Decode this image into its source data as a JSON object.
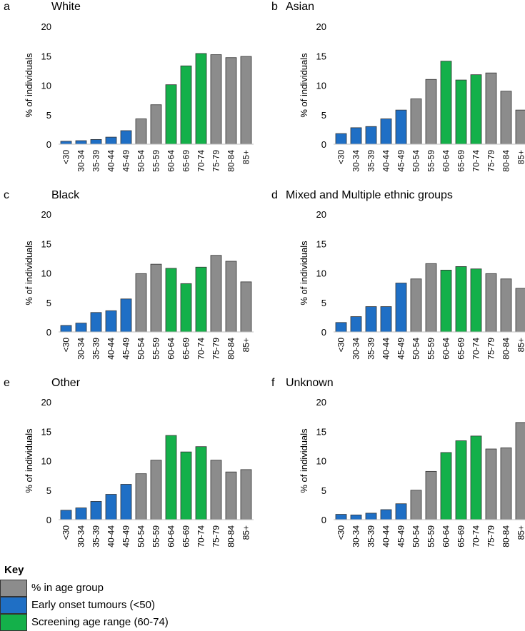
{
  "colors": {
    "gray": "#8c8c8c",
    "blue": "#1f6fc5",
    "green": "#14b04a",
    "outline": "#333333",
    "axis": "#bfbfbf"
  },
  "legend": {
    "title": "Key",
    "items": [
      {
        "label": "% in age group",
        "color_key": "gray"
      },
      {
        "label": "Early onset tumours (<50)",
        "color_key": "blue"
      },
      {
        "label": "Screening age range (60-74)",
        "color_key": "green"
      }
    ]
  },
  "chart_data": [
    {
      "type": "bar",
      "panel_letter": "a",
      "title": "White",
      "ylabel": "% of individuals",
      "ylim": [
        0,
        20
      ],
      "yticks": [
        0,
        5,
        10,
        15,
        20
      ],
      "categories": [
        "<30",
        "30-34",
        "35-39",
        "40-44",
        "45-49",
        "50-54",
        "55-59",
        "60-64",
        "65-69",
        "70-74",
        "75-79",
        "80-84",
        "85+"
      ],
      "groups": [
        "blue",
        "blue",
        "blue",
        "blue",
        "blue",
        "gray",
        "gray",
        "green",
        "green",
        "green",
        "gray",
        "gray",
        "gray"
      ],
      "values": [
        0.5,
        0.6,
        0.8,
        1.2,
        2.3,
        4.3,
        6.7,
        10.1,
        13.3,
        15.4,
        15.2,
        14.7,
        14.9
      ]
    },
    {
      "type": "bar",
      "panel_letter": "b",
      "title": "Asian",
      "ylabel": "% of individuals",
      "ylim": [
        0,
        20
      ],
      "yticks": [
        0,
        5,
        10,
        15,
        20
      ],
      "categories": [
        "<30",
        "30-34",
        "35-39",
        "40-44",
        "45-49",
        "50-54",
        "55-59",
        "60-64",
        "65-69",
        "70-74",
        "75-79",
        "80-84",
        "85+"
      ],
      "groups": [
        "blue",
        "blue",
        "blue",
        "blue",
        "blue",
        "gray",
        "gray",
        "green",
        "green",
        "green",
        "gray",
        "gray",
        "gray"
      ],
      "values": [
        1.8,
        2.8,
        3.0,
        4.3,
        5.8,
        7.7,
        11.0,
        14.1,
        10.9,
        11.8,
        12.1,
        9.0,
        5.8
      ]
    },
    {
      "type": "bar",
      "panel_letter": "c",
      "title": "Black",
      "ylabel": "% of individuals",
      "ylim": [
        0,
        20
      ],
      "yticks": [
        0,
        5,
        10,
        15,
        20
      ],
      "categories": [
        "<30",
        "30-34",
        "35-39",
        "40-44",
        "45-49",
        "50-54",
        "55-59",
        "60-64",
        "65-69",
        "70-74",
        "75-79",
        "80-84",
        "85+"
      ],
      "groups": [
        "blue",
        "blue",
        "blue",
        "blue",
        "blue",
        "gray",
        "gray",
        "green",
        "green",
        "green",
        "gray",
        "gray",
        "gray"
      ],
      "values": [
        1.1,
        1.5,
        3.3,
        3.6,
        5.6,
        9.9,
        11.5,
        10.8,
        8.2,
        11.0,
        13.0,
        12.0,
        8.5
      ]
    },
    {
      "type": "bar",
      "panel_letter": "d",
      "title": "Mixed and Multiple ethnic groups",
      "ylabel": "% of individuals",
      "ylim": [
        0,
        20
      ],
      "yticks": [
        0,
        5,
        10,
        15,
        20
      ],
      "categories": [
        "<30",
        "30-34",
        "35-39",
        "40-44",
        "45-49",
        "50-54",
        "55-59",
        "60-64",
        "65-69",
        "70-74",
        "75-79",
        "80-84",
        "85+"
      ],
      "groups": [
        "blue",
        "blue",
        "blue",
        "blue",
        "blue",
        "gray",
        "gray",
        "green",
        "green",
        "green",
        "gray",
        "gray",
        "gray"
      ],
      "values": [
        1.6,
        2.6,
        4.3,
        4.3,
        8.3,
        9.0,
        11.6,
        10.5,
        11.1,
        10.7,
        9.9,
        9.0,
        7.4
      ]
    },
    {
      "type": "bar",
      "panel_letter": "e",
      "title": "Other",
      "ylabel": "% of individuals",
      "ylim": [
        0,
        20
      ],
      "yticks": [
        0,
        5,
        10,
        15,
        20
      ],
      "categories": [
        "<30",
        "30-34",
        "35-39",
        "40-44",
        "45-49",
        "50-54",
        "55-59",
        "60-64",
        "65-69",
        "70-74",
        "75-79",
        "80-84",
        "85+"
      ],
      "groups": [
        "blue",
        "blue",
        "blue",
        "blue",
        "blue",
        "gray",
        "gray",
        "green",
        "green",
        "green",
        "gray",
        "gray",
        "gray"
      ],
      "values": [
        1.6,
        2.0,
        3.1,
        4.3,
        6.0,
        7.8,
        10.1,
        14.3,
        11.5,
        12.4,
        10.1,
        8.1,
        8.5
      ]
    },
    {
      "type": "bar",
      "panel_letter": "f",
      "title": "Unknown",
      "ylabel": "% of individuals",
      "ylim": [
        0,
        20
      ],
      "yticks": [
        0,
        5,
        10,
        15,
        20
      ],
      "categories": [
        "<30",
        "30-34",
        "35-39",
        "40-44",
        "45-49",
        "50-54",
        "55-59",
        "60-64",
        "65-69",
        "70-74",
        "75-79",
        "80-84",
        "85+"
      ],
      "groups": [
        "blue",
        "blue",
        "blue",
        "blue",
        "blue",
        "gray",
        "gray",
        "green",
        "green",
        "green",
        "gray",
        "gray",
        "gray"
      ],
      "values": [
        0.9,
        0.8,
        1.1,
        1.7,
        2.7,
        5.0,
        8.2,
        11.4,
        13.4,
        14.2,
        12.0,
        12.2,
        16.5
      ]
    }
  ]
}
